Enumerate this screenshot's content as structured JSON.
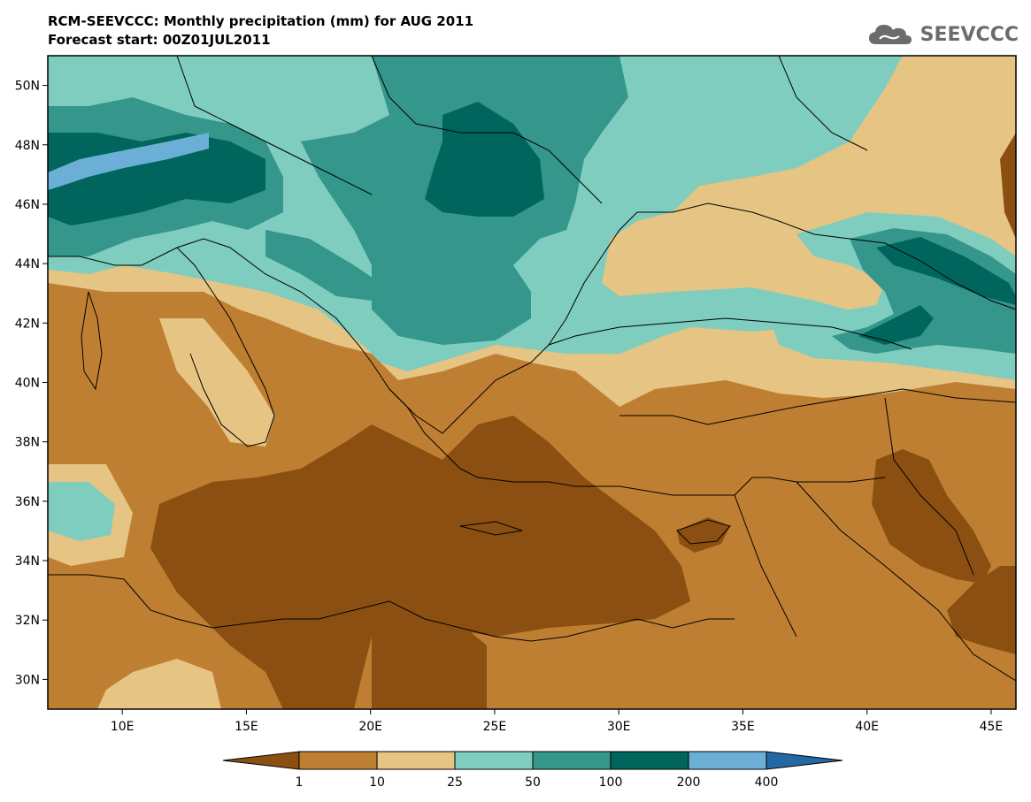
{
  "header": {
    "title": "RCM-SEEVCCC: Monthly precipitation (mm) for AUG 2011",
    "subtitle": "Forecast start: 00Z01JUL2011"
  },
  "logo": {
    "text": "SEEVCCC",
    "icon": "cloud-icon"
  },
  "map": {
    "lon_range": [
      7,
      46
    ],
    "lat_range": [
      29,
      51
    ],
    "lat_ticks": [
      {
        "label": "50N",
        "lat": 50
      },
      {
        "label": "48N",
        "lat": 48
      },
      {
        "label": "46N",
        "lat": 46
      },
      {
        "label": "44N",
        "lat": 44
      },
      {
        "label": "42N",
        "lat": 42
      },
      {
        "label": "40N",
        "lat": 40
      },
      {
        "label": "38N",
        "lat": 38
      },
      {
        "label": "36N",
        "lat": 36
      },
      {
        "label": "34N",
        "lat": 34
      },
      {
        "label": "32N",
        "lat": 32
      },
      {
        "label": "30N",
        "lat": 30
      }
    ],
    "lon_ticks": [
      {
        "label": "10E",
        "lon": 10
      },
      {
        "label": "15E",
        "lon": 15
      },
      {
        "label": "20E",
        "lon": 20
      },
      {
        "label": "25E",
        "lon": 25
      },
      {
        "label": "30E",
        "lon": 30
      },
      {
        "label": "35E",
        "lon": 35
      },
      {
        "label": "40E",
        "lon": 40
      },
      {
        "label": "45E",
        "lon": 45
      }
    ]
  },
  "legend": {
    "thresholds": [
      "1",
      "10",
      "25",
      "50",
      "100",
      "200",
      "400"
    ],
    "colors": [
      "#8b5011",
      "#bf7f32",
      "#e6c483",
      "#7fcdbe",
      "#35968b",
      "#00665d",
      "#6baed6",
      "#2468a4"
    ]
  }
}
